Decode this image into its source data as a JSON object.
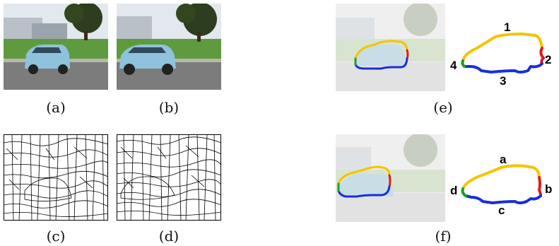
{
  "figure": {
    "captions": {
      "a": "(a)",
      "b": "(b)",
      "c": "(c)",
      "d": "(d)",
      "e": "(e)",
      "f": "(f)"
    },
    "segment_labels_e": {
      "top": "1",
      "right": "2",
      "bottom": "3",
      "left": "4"
    },
    "segment_labels_f": {
      "top": "a",
      "right": "b",
      "bottom": "c",
      "left": "d"
    },
    "colors": {
      "top": "#f5c400",
      "right": "#e01b1b",
      "bottom": "#1a2ed8",
      "left": "#1e9e2a",
      "car_body": "#8fc2dc",
      "grass": "#5a9a3a",
      "sky": "#dfe7ee",
      "road": "#7b7b7b"
    }
  }
}
